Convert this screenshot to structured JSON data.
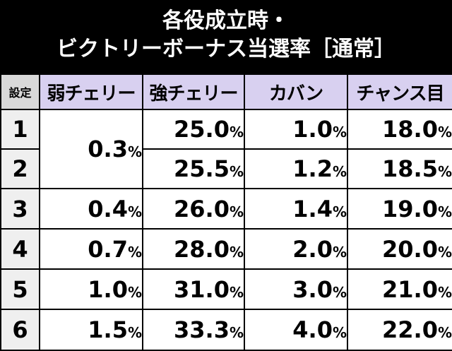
{
  "title": {
    "line1": "各役成立時・",
    "line2": "ビクトリーボーナス当選率［通常］"
  },
  "table": {
    "corner_label": "設定",
    "columns": [
      "弱チェリー",
      "強チェリー",
      "カバン",
      "チャンス目"
    ],
    "unit": "%",
    "rows": [
      {
        "setting": "1",
        "weak_cherry": "0.3",
        "strong_cherry": "25.0",
        "bag": "1.0",
        "chance": "18.0"
      },
      {
        "setting": "2",
        "weak_cherry": "0.3",
        "strong_cherry": "25.5",
        "bag": "1.2",
        "chance": "18.5"
      },
      {
        "setting": "3",
        "weak_cherry": "0.4",
        "strong_cherry": "26.0",
        "bag": "1.4",
        "chance": "19.0"
      },
      {
        "setting": "4",
        "weak_cherry": "0.7",
        "strong_cherry": "28.0",
        "bag": "2.0",
        "chance": "20.0"
      },
      {
        "setting": "5",
        "weak_cherry": "1.0",
        "strong_cherry": "31.0",
        "bag": "3.0",
        "chance": "21.0"
      },
      {
        "setting": "6",
        "weak_cherry": "1.5",
        "strong_cherry": "33.3",
        "bag": "4.0",
        "chance": "22.0"
      }
    ]
  },
  "colors": {
    "background": "#000000",
    "header_fill": "#d8d0f0",
    "setting_fill": "#efefef",
    "cell_fill": "#ffffff"
  }
}
